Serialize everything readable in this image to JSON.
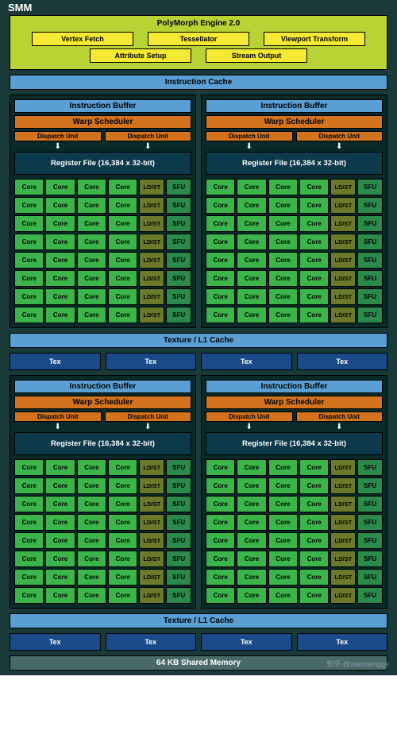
{
  "title": "SMM",
  "polymorph": {
    "title": "PolyMorph Engine 2.0",
    "row1": [
      "Vertex Fetch",
      "Tessellator",
      "Viewport Transform"
    ],
    "row2": [
      "Attribute Setup",
      "Stream Output"
    ]
  },
  "instruction_cache": "Instruction Cache",
  "texture_l1": "Texture / L1 Cache",
  "shared_mem": "64 KB Shared Memory",
  "sm_block": {
    "instruction_buffer": "Instruction Buffer",
    "warp_scheduler": "Warp Scheduler",
    "dispatch_unit": "Dispatch Unit",
    "register_file": "Register File (16,384 x 32-bit)",
    "core": "Core",
    "ldst": "LD/ST",
    "sfu": "SFU",
    "rows": 8
  },
  "tex": "Tex",
  "watermark": "知乎 @xiaomengge",
  "colors": {
    "outer_bg": "#1a3a3a",
    "polymorph_bg": "#b8d434",
    "pm_box_bg": "#f5e933",
    "blue_bar": "#5a9fd4",
    "gray_bar": "#4a6a6a",
    "sm_bg": "#0a2a2a",
    "orange": "#d4731e",
    "regfile": "#0d3a4a",
    "core": "#3bb54a",
    "ldst": "#6b7a2a",
    "sfu": "#2a8a4a",
    "tex": "#1a4a8a"
  }
}
